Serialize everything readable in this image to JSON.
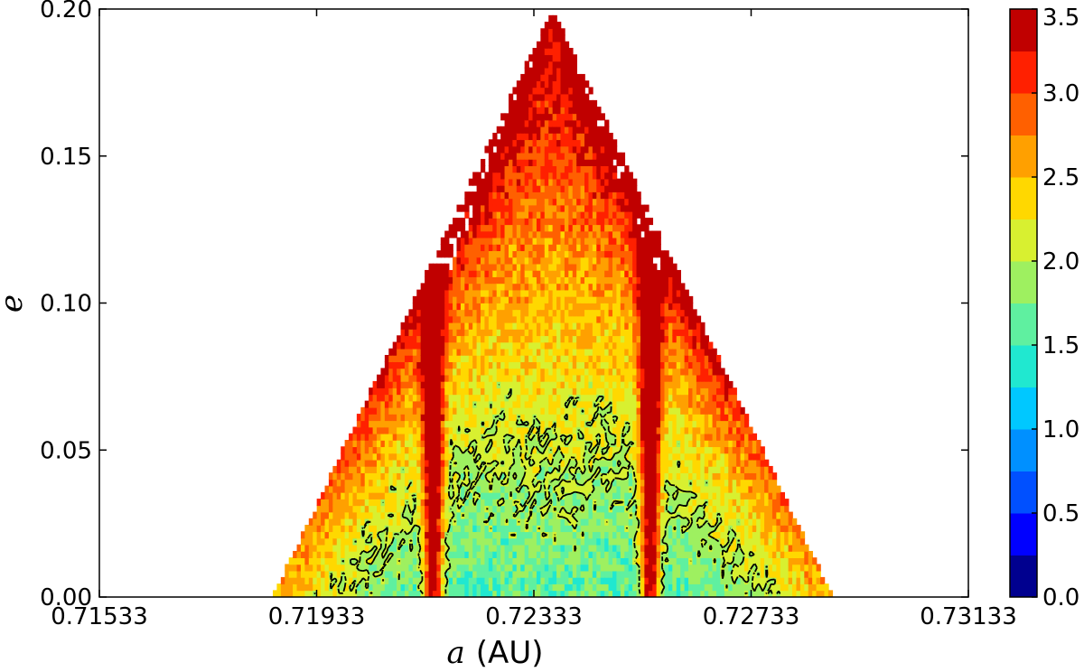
{
  "chart_data": {
    "type": "heatmap",
    "subtype": "filled-contour",
    "title": "",
    "xlabel_symbol": "a",
    "xlabel_unit": "(AU)",
    "ylabel": "e",
    "xlim": [
      0.71533,
      0.73133
    ],
    "ylim": [
      0.0,
      0.2
    ],
    "x_ticks": [
      "0.71533",
      "0.71933",
      "0.72333",
      "0.72733",
      "0.73133"
    ],
    "x_tick_values": [
      0.71533,
      0.71933,
      0.72333,
      0.72733,
      0.73133
    ],
    "y_ticks": [
      "0.00",
      "0.05",
      "0.10",
      "0.15",
      "0.20"
    ],
    "y_tick_values": [
      0.0,
      0.05,
      0.1,
      0.15,
      0.2
    ],
    "colorbar": {
      "levels": [
        0.0,
        0.25,
        0.5,
        0.75,
        1.0,
        1.25,
        1.5,
        1.75,
        2.0,
        2.25,
        2.5,
        2.75,
        3.0,
        3.25,
        3.5
      ],
      "tick_labels": [
        "0.0",
        "0.5",
        "1.0",
        "1.5",
        "2.0",
        "2.5",
        "3.0",
        "3.5"
      ],
      "tick_values": [
        0.0,
        0.5,
        1.0,
        1.5,
        2.0,
        2.5,
        3.0,
        3.5
      ],
      "colors": [
        "#00008f",
        "#0000ff",
        "#0050ff",
        "#0090ff",
        "#00c8ff",
        "#20e8d0",
        "#5ff0a0",
        "#9ef060",
        "#d8f030",
        "#ffd800",
        "#ffa000",
        "#ff6000",
        "#ff2000",
        "#c00000"
      ]
    },
    "contour_level": 2.0,
    "contour_style": "dashed black",
    "stability_region": {
      "apex_e": 0.2,
      "base_a_range": [
        0.71853,
        0.72883
      ],
      "resonance_columns_a": [
        0.72148,
        0.72548
      ]
    },
    "grid": false
  }
}
